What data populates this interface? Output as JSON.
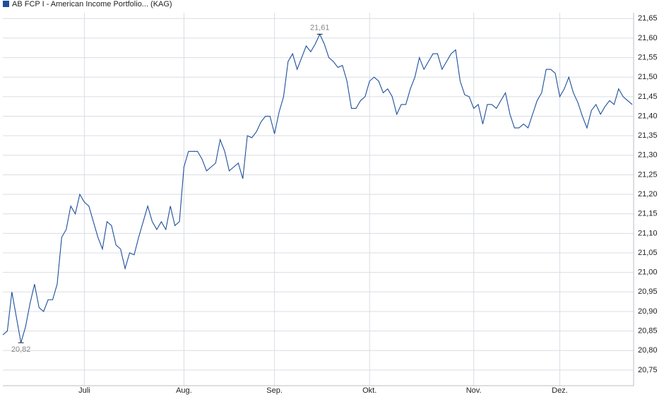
{
  "chart_data": {
    "type": "line",
    "title": "AB FCP I - American Income Portfolio... (KAG)",
    "series": [
      {
        "name": "AB FCP I - American Income Portfolio... (KAG)",
        "color": "#1d4f9c",
        "values": [
          20.84,
          20.85,
          20.95,
          20.885,
          20.82,
          20.86,
          20.92,
          20.97,
          20.91,
          20.9,
          20.93,
          20.93,
          20.97,
          21.09,
          21.11,
          21.17,
          21.15,
          21.2,
          21.18,
          21.17,
          21.13,
          21.09,
          21.06,
          21.13,
          21.12,
          21.07,
          21.06,
          21.01,
          21.05,
          21.045,
          21.09,
          21.13,
          21.17,
          21.13,
          21.11,
          21.13,
          21.11,
          21.17,
          21.12,
          21.13,
          21.27,
          21.31,
          21.31,
          21.31,
          21.29,
          21.26,
          21.27,
          21.28,
          21.34,
          21.31,
          21.26,
          21.27,
          21.28,
          21.24,
          21.35,
          21.345,
          21.36,
          21.385,
          21.4,
          21.4,
          21.355,
          21.41,
          21.45,
          21.54,
          21.56,
          21.52,
          21.55,
          21.58,
          21.565,
          21.585,
          21.61,
          21.585,
          21.55,
          21.54,
          21.525,
          21.53,
          21.49,
          21.42,
          21.42,
          21.44,
          21.45,
          21.49,
          21.5,
          21.49,
          21.46,
          21.47,
          21.45,
          21.405,
          21.43,
          21.43,
          21.47,
          21.5,
          21.55,
          21.52,
          21.54,
          21.56,
          21.56,
          21.52,
          21.54,
          21.56,
          21.57,
          21.49,
          21.455,
          21.45,
          21.42,
          21.43,
          21.38,
          21.43,
          21.43,
          21.42,
          21.44,
          21.46,
          21.405,
          21.37,
          21.37,
          21.38,
          21.37,
          21.405,
          21.44,
          21.46,
          21.52,
          21.52,
          21.51,
          21.45,
          21.47,
          21.5,
          21.46,
          21.435,
          21.4,
          21.37,
          21.415,
          21.43,
          21.405,
          21.425,
          21.44,
          21.43,
          21.47,
          21.45,
          21.44,
          21.43
        ]
      }
    ],
    "max_label": "21,61",
    "min_label": "20,82",
    "xticks": [
      {
        "value": 18,
        "label": "Juli"
      },
      {
        "value": 40,
        "label": "Aug."
      },
      {
        "value": 60,
        "label": "Sep."
      },
      {
        "value": 81,
        "label": "Okt."
      },
      {
        "value": 104,
        "label": "Nov."
      },
      {
        "value": 123,
        "label": "Dez."
      }
    ],
    "ylim": [
      20.71,
      21.665
    ],
    "yticks": [
      {
        "value": 20.75,
        "label": "20,75"
      },
      {
        "value": 20.8,
        "label": "20,80"
      },
      {
        "value": 20.85,
        "label": "20,85"
      },
      {
        "value": 20.9,
        "label": "20,90"
      },
      {
        "value": 20.95,
        "label": "20,95"
      },
      {
        "value": 21.0,
        "label": "21,00"
      },
      {
        "value": 21.05,
        "label": "21,05"
      },
      {
        "value": 21.1,
        "label": "21,10"
      },
      {
        "value": 21.15,
        "label": "21,15"
      },
      {
        "value": 21.2,
        "label": "21,20"
      },
      {
        "value": 21.25,
        "label": "21,25"
      },
      {
        "value": 21.3,
        "label": "21,30"
      },
      {
        "value": 21.35,
        "label": "21,35"
      },
      {
        "value": 21.4,
        "label": "21,40"
      },
      {
        "value": 21.45,
        "label": "21,45"
      },
      {
        "value": 21.5,
        "label": "21,50"
      },
      {
        "value": 21.55,
        "label": "21,55"
      },
      {
        "value": 21.6,
        "label": "21,60"
      },
      {
        "value": 21.65,
        "label": "21,65"
      }
    ],
    "grid": true
  }
}
